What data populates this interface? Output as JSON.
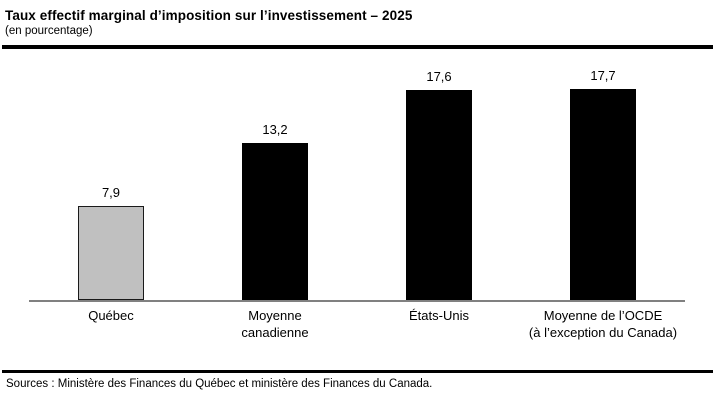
{
  "header": {
    "title": "Taux effectif marginal d’imposition sur l’investissement – 2025",
    "subtitle": "(en pourcentage)"
  },
  "footer": {
    "sources": "Sources : Ministère des Finances du Québec et ministère des Finances du Canada."
  },
  "chart_data": {
    "type": "bar",
    "title": "Taux effectif marginal d’imposition sur l’investissement – 2025",
    "subtitle": "(en pourcentage)",
    "categories": [
      "Québec",
      "Moyenne\ncanadienne",
      "États-Unis",
      "Moyenne de l’OCDE\n(à l’exception du Canada)"
    ],
    "values": [
      7.9,
      13.2,
      17.6,
      17.7
    ],
    "value_labels": [
      "7,9",
      "13,2",
      "17,6",
      "17,7"
    ],
    "bar_colors": [
      "#c0c0c0",
      "#000000",
      "#000000",
      "#000000"
    ],
    "bar_border_colors": [
      "#1a1a1a",
      "#000000",
      "#000000",
      "#000000"
    ],
    "xlabel": "",
    "ylabel": "",
    "ylim": [
      0,
      21
    ],
    "grid": false,
    "legend": null,
    "axis_line_color": "#808080",
    "source": "Sources : Ministère des Finances du Québec et ministère des Finances du Canada."
  }
}
